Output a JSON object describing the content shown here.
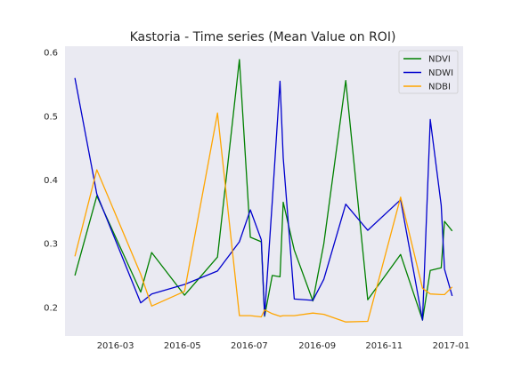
{
  "chart_data": {
    "type": "line",
    "title": "Kastoria - Time series (Mean Value on ROI)",
    "xlabel": "",
    "ylabel": "",
    "xlim": [
      "2016-01-15",
      "2017-01-12"
    ],
    "ylim": [
      0.155,
      0.61
    ],
    "x_ticks": [
      "2016-03",
      "2016-05",
      "2016-07",
      "2016-09",
      "2016-11",
      "2017-01"
    ],
    "y_ticks": [
      0.2,
      0.3,
      0.4,
      0.5,
      0.6
    ],
    "y_tick_labels": [
      "0.2",
      "0.3",
      "0.4",
      "0.5",
      "0.6"
    ],
    "legend_position": "upper-right",
    "grid": false,
    "background": "#eaeaf2",
    "series": [
      {
        "name": "NDVI",
        "color": "#008000",
        "points": [
          [
            "2016-01-24",
            0.25
          ],
          [
            "2016-02-13",
            0.375
          ],
          [
            "2016-03-24",
            0.224
          ],
          [
            "2016-04-03",
            0.286
          ],
          [
            "2016-05-03",
            0.219
          ],
          [
            "2016-06-02",
            0.279
          ],
          [
            "2016-06-22",
            0.589
          ],
          [
            "2016-07-02",
            0.31
          ],
          [
            "2016-07-12",
            0.303
          ],
          [
            "2016-07-15",
            0.186
          ],
          [
            "2016-07-22",
            0.25
          ],
          [
            "2016-07-29",
            0.248
          ],
          [
            "2016-08-01",
            0.365
          ],
          [
            "2016-08-11",
            0.29
          ],
          [
            "2016-08-28",
            0.21
          ],
          [
            "2016-09-07",
            0.3
          ],
          [
            "2016-09-27",
            0.556
          ],
          [
            "2016-10-17",
            0.212
          ],
          [
            "2016-11-16",
            0.283
          ],
          [
            "2016-12-06",
            0.18
          ],
          [
            "2016-12-13",
            0.258
          ],
          [
            "2016-12-23",
            0.262
          ],
          [
            "2016-12-26",
            0.335
          ],
          [
            "2017-01-02",
            0.32
          ]
        ]
      },
      {
        "name": "NDWI",
        "color": "#0000cd",
        "points": [
          [
            "2016-01-24",
            0.56
          ],
          [
            "2016-02-13",
            0.378
          ],
          [
            "2016-03-24",
            0.207
          ],
          [
            "2016-04-03",
            0.221
          ],
          [
            "2016-05-03",
            0.236
          ],
          [
            "2016-06-02",
            0.257
          ],
          [
            "2016-06-22",
            0.303
          ],
          [
            "2016-07-02",
            0.353
          ],
          [
            "2016-07-12",
            0.306
          ],
          [
            "2016-07-15",
            0.187
          ],
          [
            "2016-07-22",
            0.366
          ],
          [
            "2016-07-29",
            0.555
          ],
          [
            "2016-08-01",
            0.435
          ],
          [
            "2016-08-11",
            0.213
          ],
          [
            "2016-08-28",
            0.211
          ],
          [
            "2016-09-07",
            0.244
          ],
          [
            "2016-09-27",
            0.362
          ],
          [
            "2016-10-17",
            0.321
          ],
          [
            "2016-11-16",
            0.369
          ],
          [
            "2016-12-06",
            0.18
          ],
          [
            "2016-12-13",
            0.495
          ],
          [
            "2016-12-23",
            0.36
          ],
          [
            "2016-12-26",
            0.26
          ],
          [
            "2017-01-02",
            0.218
          ]
        ]
      },
      {
        "name": "NDBI",
        "color": "#ffa500",
        "points": [
          [
            "2016-01-24",
            0.28
          ],
          [
            "2016-02-13",
            0.416
          ],
          [
            "2016-03-24",
            0.252
          ],
          [
            "2016-04-03",
            0.202
          ],
          [
            "2016-05-03",
            0.225
          ],
          [
            "2016-06-02",
            0.505
          ],
          [
            "2016-06-22",
            0.187
          ],
          [
            "2016-07-02",
            0.187
          ],
          [
            "2016-07-12",
            0.185
          ],
          [
            "2016-07-15",
            0.196
          ],
          [
            "2016-07-22",
            0.19
          ],
          [
            "2016-07-29",
            0.186
          ],
          [
            "2016-08-01",
            0.187
          ],
          [
            "2016-08-11",
            0.187
          ],
          [
            "2016-08-28",
            0.191
          ],
          [
            "2016-09-07",
            0.189
          ],
          [
            "2016-09-27",
            0.177
          ],
          [
            "2016-10-17",
            0.178
          ],
          [
            "2016-11-16",
            0.373
          ],
          [
            "2016-12-06",
            0.23
          ],
          [
            "2016-12-13",
            0.221
          ],
          [
            "2016-12-23",
            0.22
          ],
          [
            "2016-12-26",
            0.22
          ],
          [
            "2017-01-02",
            0.232
          ]
        ]
      }
    ]
  }
}
